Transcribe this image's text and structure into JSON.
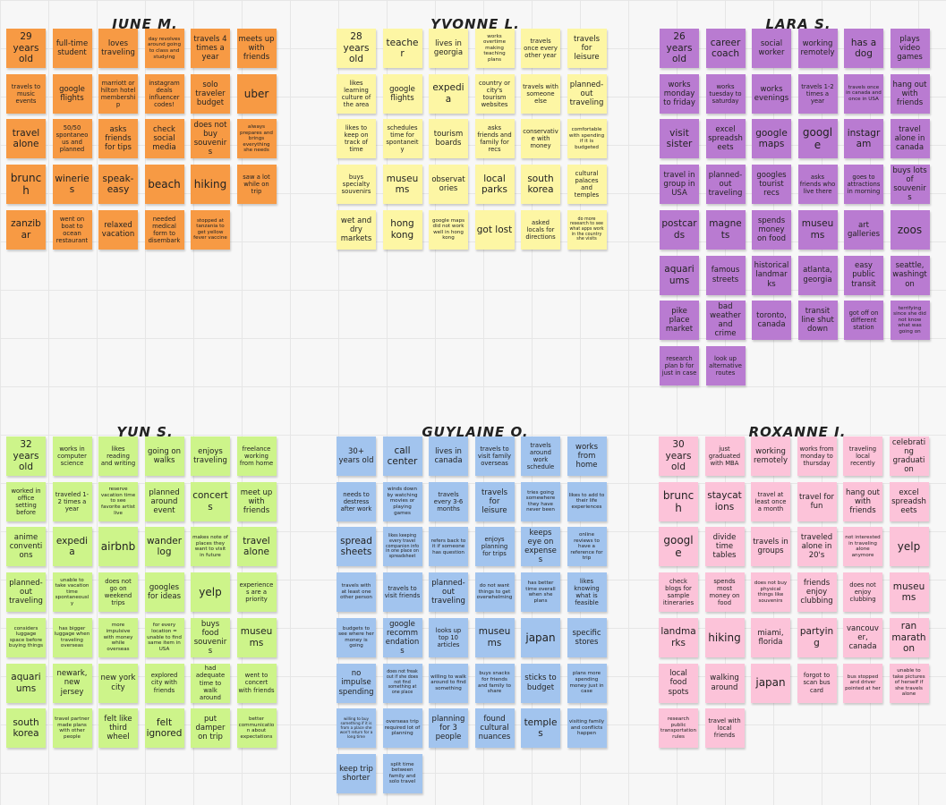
{
  "groups": [
    {
      "id": "june",
      "name": "JUNE M.",
      "color": "orange",
      "color_hex": "#f79a44",
      "notes": [
        [
          "29 years old",
          "full-time student",
          "loves traveling",
          "day revolves around going to class and studying",
          "travels 4 times a year",
          "meets up with friends"
        ],
        [
          "travels to music events",
          "google flights",
          "marriott or hilton hotel membership",
          "instagram deals influencer codes!",
          "solo traveler budget",
          "uber"
        ],
        [
          "travel alone",
          "50/50 spontaneous and planned",
          "asks friends for tips",
          "check social media",
          "does not buy souvenirs",
          "always prepares and brings everything she needs"
        ],
        [
          "brunch",
          "wineries",
          "speak-easy",
          "beach",
          "hiking",
          "saw a lot while on trip"
        ],
        [
          "zanzibar",
          "went on boat to ocean restaurant",
          "relaxed vacation",
          "needed medical form to disembark",
          "stopped at tanzania to get yellow fever vaccine"
        ]
      ]
    },
    {
      "id": "yvonne",
      "name": "YVONNE L.",
      "color": "yellow",
      "color_hex": "#fdf6a4",
      "notes": [
        [
          "28 years old",
          "teacher",
          "lives in georgia",
          "works overtime making teaching plans",
          "travels once every other year",
          "travels for leisure"
        ],
        [
          "likes learning culture of the area",
          "google flights",
          "expedia",
          "country or city's tourism websites",
          "travels with someone else",
          "planned-out traveling"
        ],
        [
          "likes to keep on track of time",
          "schedules time for spontaneity",
          "tourism boards",
          "asks friends and family for recs",
          "conservative with money",
          "comfortable with spending if it is budgeted"
        ],
        [
          "buys specialty souvenirs",
          "museums",
          "observatories",
          "local parks",
          "south korea",
          "cultural palaces and temples"
        ],
        [
          "wet and dry markets",
          "hong kong",
          "google maps did not work well in hong kong",
          "got lost",
          "asked locals for directions",
          "do more research to see what apps work in the country she visits"
        ]
      ]
    },
    {
      "id": "lara",
      "name": "LARA S.",
      "color": "purple",
      "color_hex": "#b97bd1",
      "notes": [
        [
          "26 years old",
          "career coach",
          "social worker",
          "working remotely",
          "has a dog",
          "plays video games"
        ],
        [
          "works monday to friday",
          "works tuesday to saturday",
          "works evenings",
          "travels 1-2 times a year",
          "travels once in canada and once in USA",
          "hang out with friends"
        ],
        [
          "visit sister",
          "excel spreadsheets",
          "google maps",
          "google",
          "instagram",
          "travel alone in canada"
        ],
        [
          "travel in group in USA",
          "planned-out traveling",
          "googles tourist recs",
          "asks friends who live there",
          "goes to attractions in morning",
          "buys lots of souvenirs"
        ],
        [
          "postcards",
          "magnets",
          "spends money on food",
          "museums",
          "art galleries",
          "zoos"
        ],
        [
          "aquariums",
          "famous streets",
          "historical landmarks",
          "atlanta, georgia",
          "easy public transit",
          "seattle, washington"
        ],
        [
          "pike place market",
          "bad weather and crime",
          "toronto, canada",
          "transit line shut down",
          "got off on different station",
          "terrifying since she did not know what was going on"
        ],
        [
          "research plan b for just in case",
          "look up alternative routes"
        ]
      ]
    },
    {
      "id": "yun",
      "name": "YUN S.",
      "color": "green",
      "color_hex": "#cdf48a",
      "notes": [
        [
          "32 years old",
          "works in computer science",
          "likes reading and writing",
          "going on walks",
          "enjoys traveling",
          "freelance working from home"
        ],
        [
          "worked in office setting before",
          "traveled 1-2 times a year",
          "reserve vacation time to see favorite artist live",
          "planned around event",
          "concerts",
          "meet up with friends"
        ],
        [
          "anime conventions",
          "expedia",
          "airbnb",
          "wanderlog",
          "makes note of places they want to visit in future",
          "travel alone"
        ],
        [
          "planned-out traveling",
          "unable to take vacation time spontaneously",
          "does not go on weekend trips",
          "googles for ideas",
          "yelp",
          "experiences are a priority"
        ],
        [
          "considers luggage space before buying things",
          "has bigger luggage when traveling overseas",
          "more impulsive with money while overseas",
          "for every location = unable to find same item in USA",
          "buys food souvenirs",
          "museums"
        ],
        [
          "aquariums",
          "newark, new jersey",
          "new york city",
          "explored city with friends",
          "had adequate time to walk around",
          "went to concert with friends"
        ],
        [
          "south korea",
          "travel partner made plans with other people",
          "felt like third wheel",
          "felt ignored",
          "put damper on trip",
          "better communication about expectations"
        ]
      ]
    },
    {
      "id": "guylaine",
      "name": "GUYLAINE O.",
      "color": "blue",
      "color_hex": "#a2c4ee",
      "notes": [
        [
          "30+ years old",
          "call center",
          "lives in canada",
          "travels to visit family overseas",
          "travels around work schedule",
          "works from home"
        ],
        [
          "needs to destress after work",
          "winds down by watching movies or playing games",
          "travels every 3-6 months",
          "travels for leisure",
          "tries going somewhere they have never been",
          "likes to add to their life experiences"
        ],
        [
          "spreadsheets",
          "likes keeping every travel companion info in one place on spreadsheet",
          "refers back to it if someone has question",
          "enjoys planning for trips",
          "keeps eye on expenses",
          "online reviews to have a reference for trip"
        ],
        [
          "travels with at least one other person",
          "travels to visit friends",
          "planned-out traveling",
          "do not want things to get overwhelming",
          "has better time overall when she plans",
          "likes knowing what is feasible"
        ],
        [
          "budgets to see where her money is going",
          "google recommendations",
          "looks up top 10 articles",
          "museums",
          "japan",
          "specific stores"
        ],
        [
          "no impulse spending",
          "does not freak out if she does not find something at one place",
          "willing to walk around to find something",
          "buys snacks for friends and family to share",
          "sticks to budget",
          "plans more spending money just in case"
        ],
        [
          "willing to buy something if it is from a place she won't return for a long time",
          "overseas trip required lot of planning",
          "planning for 3 people",
          "found cultural nuances",
          "temples",
          "visiting family and conflicts happen"
        ],
        [
          "keep trip shorter",
          "split time between family and solo travel"
        ]
      ]
    },
    {
      "id": "roxanne",
      "name": "ROXANNE J.",
      "color": "pink",
      "color_hex": "#fcc3d9",
      "notes": [
        [
          "30 years old",
          "just graduated with MBA",
          "working remotely",
          "works from monday to thursday",
          "traveling local recently",
          "celebrating graduation"
        ],
        [
          "brunch",
          "staycations",
          "travel at least once a month",
          "travel for fun",
          "hang out with friends",
          "excel spreadsheets"
        ],
        [
          "google",
          "divide time tables",
          "travels in groups",
          "traveled alone in 20's",
          "not interested in traveling alone anymore",
          "yelp"
        ],
        [
          "check blogs for sample itineraries",
          "spends most money on food",
          "does not buy physical things like souvenirs",
          "friends enjoy clubbing",
          "does not enjoy clubbing",
          "museums"
        ],
        [
          "landmarks",
          "hiking",
          "miami, florida",
          "partying",
          "vancouver, canada",
          "ran marathon"
        ],
        [
          "local food spots",
          "walking around",
          "japan",
          "forgot to scan bus card",
          "bus stopped and driver pointed at her",
          "unable to take pictures of herself if she travels alone"
        ],
        [
          "research public transportation rules",
          "travel with local friends"
        ]
      ]
    }
  ]
}
